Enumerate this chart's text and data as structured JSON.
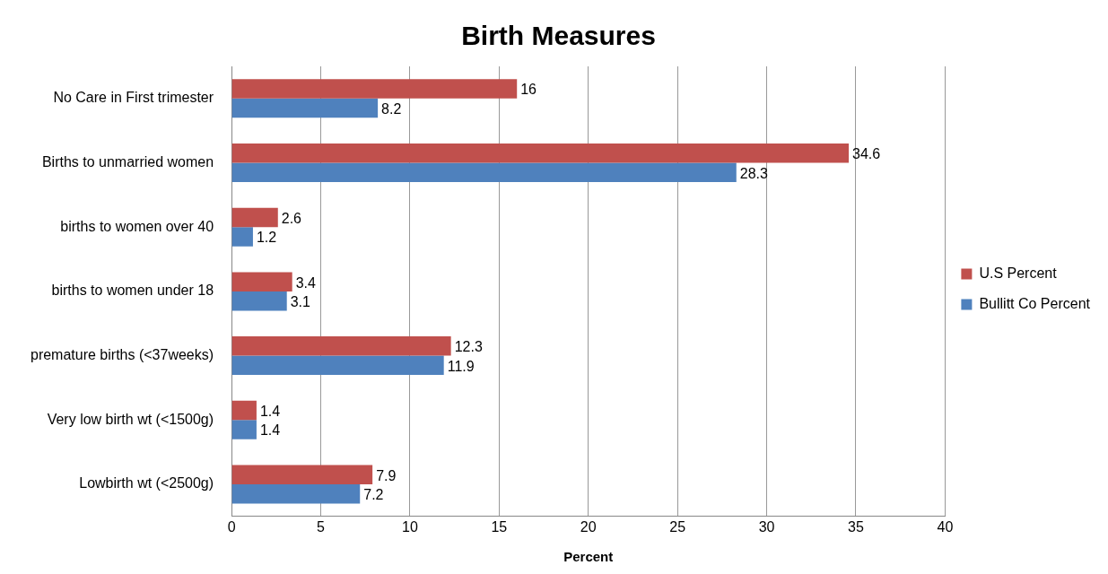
{
  "chart_data": {
    "type": "bar",
    "orientation": "horizontal",
    "title": "Birth Measures",
    "xlabel": "Percent",
    "categories": [
      "No Care in First trimester",
      "Births to unmarried women",
      "births to women over 40",
      "births to women under 18",
      "premature births (<37weeks)",
      "Very low birth wt (<1500g)",
      "Lowbirth wt (<2500g)"
    ],
    "series": [
      {
        "name": "U.S Percent",
        "color": "#c0504d",
        "values": [
          16,
          34.6,
          2.6,
          3.4,
          12.3,
          1.4,
          7.9
        ]
      },
      {
        "name": "Bullitt Co Percent",
        "color": "#4f81bd",
        "values": [
          8.2,
          28.3,
          1.2,
          3.1,
          11.9,
          1.4,
          7.2
        ]
      }
    ],
    "xlim": [
      0,
      40
    ],
    "xticks": [
      0,
      5,
      10,
      15,
      20,
      25,
      30,
      35,
      40
    ],
    "grid": "x",
    "legend": "right",
    "data_labels": true
  }
}
